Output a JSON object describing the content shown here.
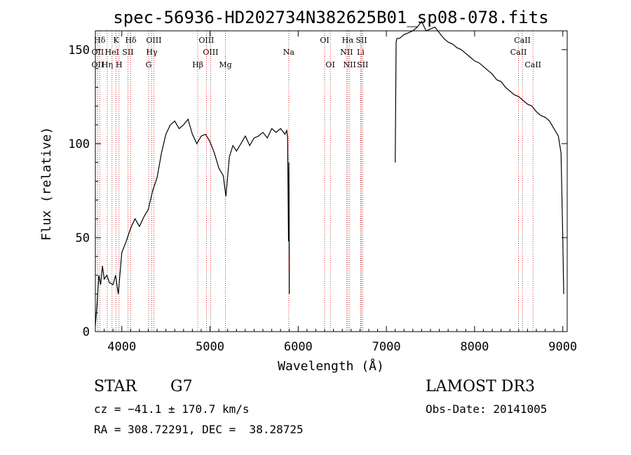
{
  "chart_data": {
    "type": "line",
    "title": "spec-56936-HD202734N382625B01_sp08-078.fits",
    "xlabel": "Wavelength (Å)",
    "ylabel": "Flux (relative)",
    "xlim": [
      3700,
      9050
    ],
    "ylim": [
      0,
      1600
    ],
    "x_ticks": [
      4000,
      5000,
      6000,
      7000,
      8000,
      9000
    ],
    "y_ticks": [
      0,
      50,
      100,
      150
    ],
    "y_tick_scale": 10,
    "series": [
      {
        "name": "flux",
        "color": "#000000",
        "x": [
          3700,
          3720,
          3740,
          3760,
          3780,
          3800,
          3830,
          3860,
          3900,
          3930,
          3960,
          4000,
          4050,
          4100,
          4150,
          4200,
          4250,
          4300,
          4350,
          4400,
          4450,
          4500,
          4550,
          4600,
          4650,
          4700,
          4750,
          4800,
          4850,
          4900,
          4950,
          5000,
          5050,
          5100,
          5150,
          5180,
          5220,
          5260,
          5300,
          5350,
          5400,
          5450,
          5500,
          5550,
          5600,
          5650,
          5700,
          5750,
          5800,
          5850,
          5870,
          5880,
          5890,
          5895,
          5900
        ],
        "y": [
          30,
          150,
          300,
          250,
          350,
          280,
          300,
          260,
          250,
          300,
          200,
          420,
          480,
          550,
          600,
          560,
          610,
          650,
          750,
          820,
          950,
          1050,
          1100,
          1120,
          1080,
          1100,
          1130,
          1050,
          1000,
          1040,
          1050,
          1010,
          950,
          870,
          830,
          720,
          930,
          990,
          960,
          1000,
          1040,
          990,
          1030,
          1040,
          1060,
          1030,
          1080,
          1060,
          1080,
          1050,
          1070,
          1030,
          480,
          900,
          200
        ]
      },
      {
        "name": "flux-red",
        "color": "#000000",
        "x": [
          7100,
          7110,
          7120,
          7150,
          7200,
          7250,
          7300,
          7350,
          7400,
          7450,
          7500,
          7550,
          7600,
          7650,
          7700,
          7750,
          7800,
          7850,
          7900,
          7950,
          8000,
          8050,
          8100,
          8150,
          8200,
          8250,
          8300,
          8350,
          8400,
          8450,
          8500,
          8550,
          8600,
          8650,
          8700,
          8750,
          8800,
          8850,
          8900,
          8950,
          8980,
          9000,
          9010
        ],
        "y": [
          900,
          1540,
          1560,
          1560,
          1580,
          1590,
          1600,
          1620,
          1650,
          1600,
          1610,
          1620,
          1590,
          1560,
          1540,
          1530,
          1510,
          1500,
          1480,
          1460,
          1440,
          1430,
          1410,
          1390,
          1370,
          1340,
          1330,
          1300,
          1280,
          1260,
          1250,
          1230,
          1210,
          1200,
          1170,
          1150,
          1140,
          1120,
          1080,
          1040,
          950,
          500,
          200
        ]
      }
    ],
    "line_markers": [
      {
        "label": "Hδ",
        "x": 3750,
        "row": 1
      },
      {
        "label": "K",
        "x": 3934,
        "row": 1
      },
      {
        "label": "Hδ",
        "x": 4102,
        "row": 1
      },
      {
        "label": "OIII",
        "x": 4363,
        "row": 1
      },
      {
        "label": "OIII",
        "x": 4959,
        "row": 1
      },
      {
        "label": "OI",
        "x": 6300,
        "row": 1
      },
      {
        "label": "Hα",
        "x": 6563,
        "row": 1
      },
      {
        "label": "SII",
        "x": 6717,
        "row": 1
      },
      {
        "label": "CaII",
        "x": 8542,
        "row": 1
      },
      {
        "label": "OII",
        "x": 3727,
        "row": 2
      },
      {
        "label": "HeI",
        "x": 3889,
        "row": 2
      },
      {
        "label": "SII",
        "x": 4070,
        "row": 2
      },
      {
        "label": "Hγ",
        "x": 4340,
        "row": 2
      },
      {
        "label": "OIII",
        "x": 5007,
        "row": 2
      },
      {
        "label": "Na",
        "x": 5893,
        "row": 2
      },
      {
        "label": "NII",
        "x": 6548,
        "row": 2
      },
      {
        "label": "Li",
        "x": 6708,
        "row": 2
      },
      {
        "label": "CaII",
        "x": 8498,
        "row": 2
      },
      {
        "label": "OII",
        "x": 3727,
        "row": 3
      },
      {
        "label": "Hη",
        "x": 3835,
        "row": 3
      },
      {
        "label": "H",
        "x": 3969,
        "row": 3
      },
      {
        "label": "G",
        "x": 4304,
        "row": 3
      },
      {
        "label": "Hβ",
        "x": 4861,
        "row": 3
      },
      {
        "label": "Mg",
        "x": 5175,
        "row": 3
      },
      {
        "label": "OI",
        "x": 6364,
        "row": 3
      },
      {
        "label": "NII",
        "x": 6583,
        "row": 3
      },
      {
        "label": "SII",
        "x": 6731,
        "row": 3
      },
      {
        "label": "CaII",
        "x": 8662,
        "row": 3
      }
    ]
  },
  "info": {
    "object_class": "STAR",
    "subclass": "G7",
    "survey": "LAMOST DR3",
    "cz": "cz = −41.1 ± 170.7 km/s",
    "obs_date": "Obs-Date: 20141005",
    "coords": "RA = 308.72291, DEC =  38.28725"
  }
}
